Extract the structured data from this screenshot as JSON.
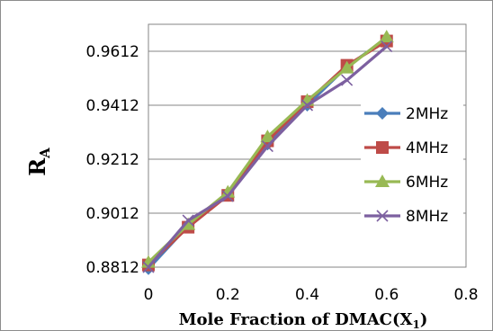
{
  "chart_data": {
    "type": "line",
    "title": "",
    "xlabel": "Mole Fraction of DMAC(X",
    "xlabel_sub": "1",
    "xlabel_close": ")",
    "ylabel": "R",
    "ylabel_sub": "A",
    "xlim": [
      0,
      0.8
    ],
    "ylim": [
      0.8812,
      0.9712
    ],
    "x_ticks": [
      0,
      0.2,
      0.4,
      0.6,
      0.8
    ],
    "x_tick_labels": [
      "0",
      "0.2",
      "0.4",
      "0.6",
      "0.8"
    ],
    "y_ticks": [
      0.8812,
      0.9012,
      0.9212,
      0.9412,
      0.9612
    ],
    "y_tick_labels": [
      "0.8812",
      "0.9012",
      "0.9212",
      "0.9412",
      "0.9612"
    ],
    "grid": "horizontal",
    "legend_position": "right",
    "x": [
      0,
      0.1,
      0.2,
      0.3,
      0.4,
      0.5,
      0.6
    ],
    "series": [
      {
        "name": "2MHz",
        "color": "#4a7ebb",
        "marker": "diamond",
        "values": [
          0.8806,
          0.8965,
          0.9078,
          0.9268,
          0.9412,
          0.9555,
          0.966
        ]
      },
      {
        "name": "4MHz",
        "color": "#be4b48",
        "marker": "square",
        "values": [
          0.882,
          0.896,
          0.9078,
          0.928,
          0.9425,
          0.956,
          0.965
        ]
      },
      {
        "name": "6MHz",
        "color": "#98b954",
        "marker": "triangle",
        "values": [
          0.883,
          0.897,
          0.909,
          0.9295,
          0.943,
          0.955,
          0.9665
        ]
      },
      {
        "name": "8MHz",
        "color": "#7d60a0",
        "marker": "x",
        "values": [
          0.8812,
          0.8985,
          0.9075,
          0.926,
          0.9412,
          0.9505,
          0.963
        ]
      }
    ]
  }
}
